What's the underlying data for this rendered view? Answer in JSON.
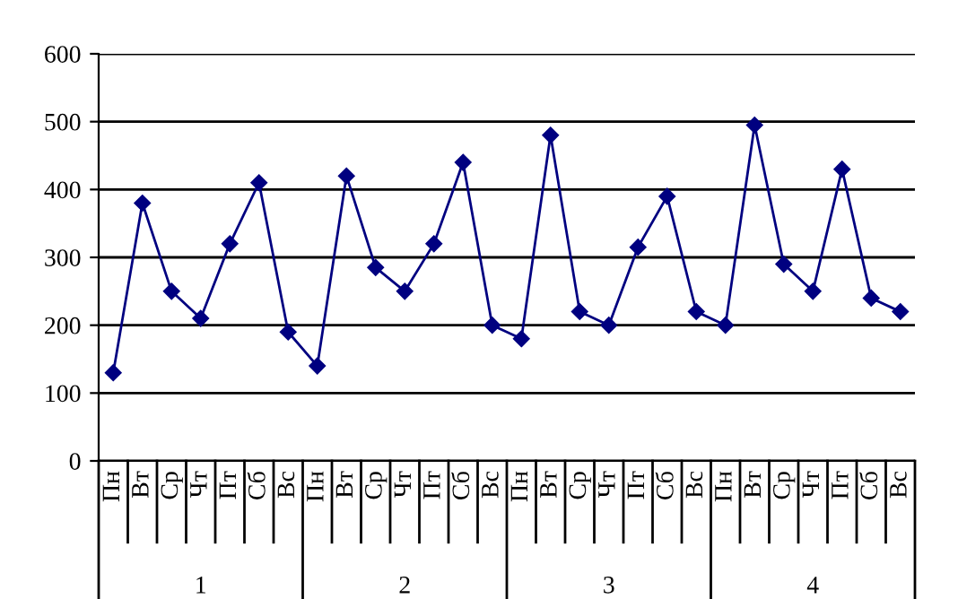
{
  "chart_data": {
    "type": "line",
    "categories": [
      "Пн",
      "Вт",
      "Ср",
      "Чт",
      "Пт",
      "Сб",
      "Вс",
      "Пн",
      "Вт",
      "Ср",
      "Чт",
      "Пт",
      "Сб",
      "Вс",
      "Пн",
      "Вт",
      "Ср",
      "Чт",
      "Пт",
      "Сб",
      "Вс",
      "Пн",
      "Вт",
      "Ср",
      "Чт",
      "Пт",
      "Сб",
      "Вс"
    ],
    "series": [
      {
        "color": "#000080",
        "values": [
          130,
          380,
          250,
          210,
          320,
          410,
          190,
          140,
          420,
          285,
          250,
          320,
          440,
          200,
          180,
          480,
          220,
          200,
          315,
          390,
          220,
          200,
          495,
          290,
          250,
          430,
          240,
          220
        ]
      }
    ],
    "annotations": [
      "1",
      "2",
      "3",
      "4"
    ],
    "ylim": [
      0,
      600
    ],
    "yticks": [
      0,
      100,
      200,
      300,
      400,
      500,
      600
    ],
    "grid": "y",
    "marker": "diamond",
    "legend": false
  }
}
